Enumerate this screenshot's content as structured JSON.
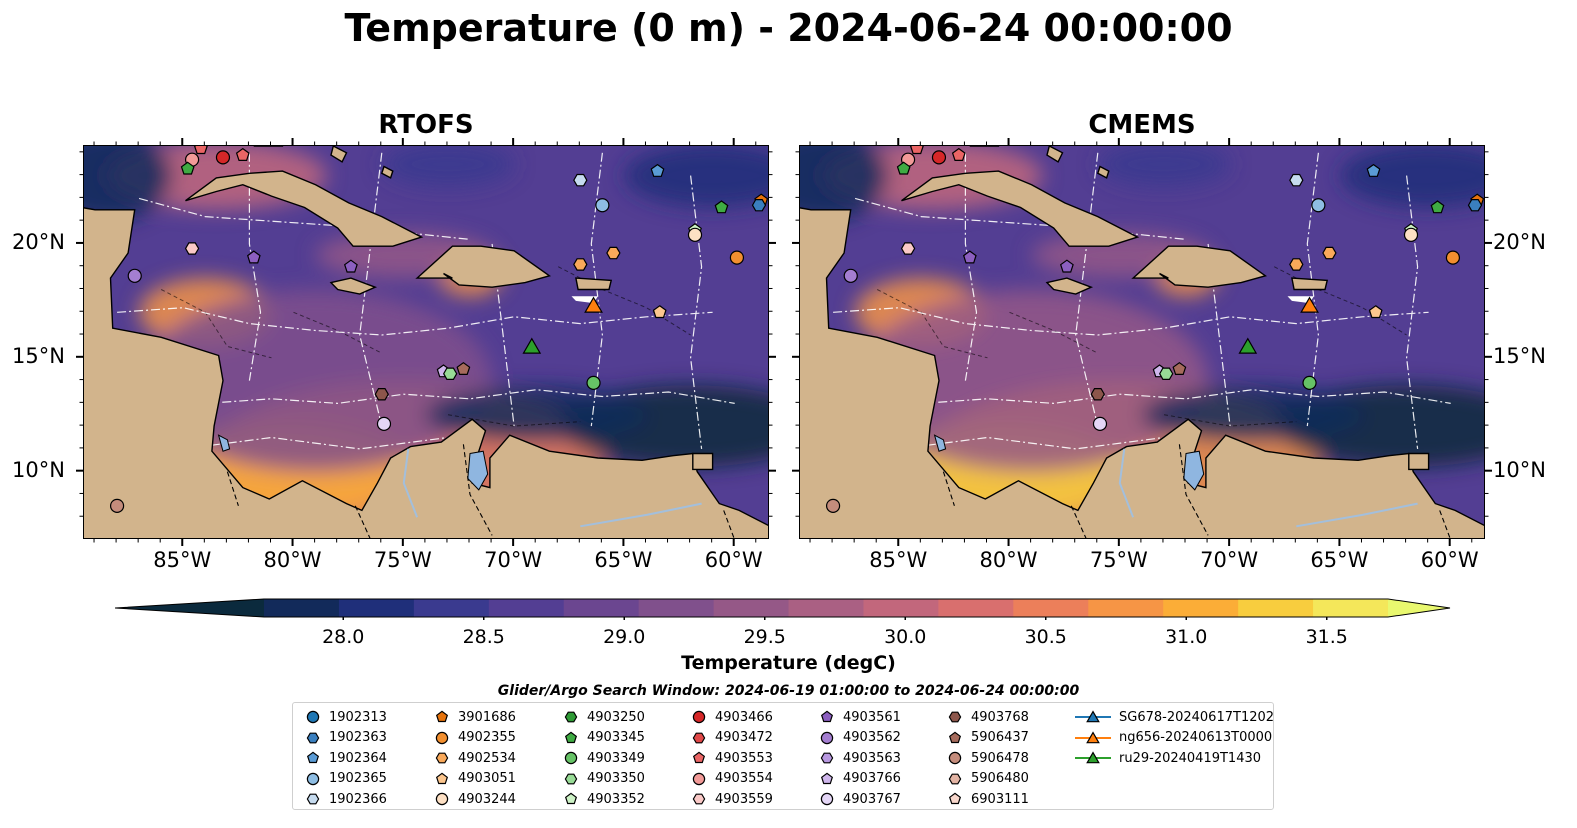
{
  "title": "Temperature (0 m) - 2024-06-24 00:00:00",
  "panels": [
    {
      "title": "RTOFS"
    },
    {
      "title": "CMEMS"
    }
  ],
  "lon_ticks": [
    "85°W",
    "80°W",
    "75°W",
    "70°W",
    "65°W",
    "60°W"
  ],
  "lat_ticks": [
    "20°N",
    "15°N",
    "10°N"
  ],
  "map_extent": {
    "lon": [
      -89.5,
      -58.4
    ],
    "lat": [
      7.0,
      24.3
    ]
  },
  "colorbar": {
    "label": "Temperature (degC)",
    "ticks": [
      "28.0",
      "28.5",
      "29.0",
      "29.5",
      "30.0",
      "30.5",
      "31.0",
      "31.5"
    ],
    "range": [
      27.75,
      31.75
    ],
    "extend": "both",
    "colors": [
      "#0b2a3d",
      "#122a5a",
      "#1f2f7a",
      "#3a3a8f",
      "#533e93",
      "#6b4690",
      "#80508c",
      "#955887",
      "#aa6083",
      "#c2677c",
      "#d96f6e",
      "#ec7f5a",
      "#f69545",
      "#fbad37",
      "#f8cd3e",
      "#f4e75a",
      "#e9f86f"
    ]
  },
  "search_window": "Glider/Argo Search Window: 2024-06-19 01:00:00 to 2024-06-24 00:00:00",
  "legend": [
    {
      "label": "1902313",
      "marker": "circle",
      "color": "#1f77b4"
    },
    {
      "label": "1902363",
      "marker": "hexagon",
      "color": "#3a7fbf"
    },
    {
      "label": "1902364",
      "marker": "pentagon",
      "color": "#5a9bd5"
    },
    {
      "label": "1902365",
      "marker": "circle",
      "color": "#8ebde3"
    },
    {
      "label": "1902366",
      "marker": "hexagon",
      "color": "#c6dbef"
    },
    {
      "label": "3901686",
      "marker": "pentagon",
      "color": "#e6730c"
    },
    {
      "label": "4902355",
      "marker": "circle",
      "color": "#f28f2f"
    },
    {
      "label": "4902534",
      "marker": "hexagon",
      "color": "#f9a95a"
    },
    {
      "label": "4903051",
      "marker": "pentagon",
      "color": "#fcc68e"
    },
    {
      "label": "4903244",
      "marker": "circle",
      "color": "#fde0c4"
    },
    {
      "label": "4903250",
      "marker": "hexagon",
      "color": "#2e9a35"
    },
    {
      "label": "4903345",
      "marker": "pentagon",
      "color": "#3fab43"
    },
    {
      "label": "4903349",
      "marker": "circle",
      "color": "#66c266"
    },
    {
      "label": "4903350",
      "marker": "hexagon",
      "color": "#98db96"
    },
    {
      "label": "4903352",
      "marker": "pentagon",
      "color": "#cdf2c6"
    },
    {
      "label": "4903466",
      "marker": "circle",
      "color": "#d62728"
    },
    {
      "label": "4903472",
      "marker": "hexagon",
      "color": "#e04848"
    },
    {
      "label": "4903553",
      "marker": "pentagon",
      "color": "#ea6565"
    },
    {
      "label": "4903554",
      "marker": "circle",
      "color": "#f29a98"
    },
    {
      "label": "4903559",
      "marker": "hexagon",
      "color": "#fac9c7"
    },
    {
      "label": "4903561",
      "marker": "pentagon",
      "color": "#8c5fc0"
    },
    {
      "label": "4903562",
      "marker": "circle",
      "color": "#a47ed1"
    },
    {
      "label": "4903563",
      "marker": "hexagon",
      "color": "#b898e0"
    },
    {
      "label": "4903766",
      "marker": "pentagon",
      "color": "#cfb6ec"
    },
    {
      "label": "4903767",
      "marker": "circle",
      "color": "#e4d6f6"
    },
    {
      "label": "4903768",
      "marker": "hexagon",
      "color": "#8c564b"
    },
    {
      "label": "5906437",
      "marker": "pentagon",
      "color": "#a66b5c"
    },
    {
      "label": "5906478",
      "marker": "circle",
      "color": "#c48c7c"
    },
    {
      "label": "5906480",
      "marker": "hexagon",
      "color": "#e3b4a4"
    },
    {
      "label": "6903111",
      "marker": "pentagon",
      "color": "#f8d7cc"
    },
    {
      "label": "SG678-20240617T1202",
      "marker": "triangle",
      "color": "#1f77b4",
      "line": true
    },
    {
      "label": "ng656-20240613T0000",
      "marker": "triangle",
      "color": "#ff7f0e",
      "line": true
    },
    {
      "label": "ru29-20240419T1430",
      "marker": "triangle",
      "color": "#2ca02c",
      "line": true
    }
  ],
  "floats": [
    {
      "id": "4903553",
      "lon": -84.2,
      "lat": 24.2
    },
    {
      "id": "4903554",
      "lon": -84.6,
      "lat": 23.7
    },
    {
      "id": "4903345",
      "lon": -84.8,
      "lat": 23.3
    },
    {
      "id": "4903466",
      "lon": -83.2,
      "lat": 23.8
    },
    {
      "id": "4903553",
      "lon": -82.3,
      "lat": 23.9
    },
    {
      "id": "4903559",
      "lon": -84.6,
      "lat": 19.8
    },
    {
      "id": "4903562",
      "lon": -87.2,
      "lat": 18.6
    },
    {
      "id": "4903561",
      "lon": -81.8,
      "lat": 19.4
    },
    {
      "id": "4903561",
      "lon": -77.4,
      "lat": 19.0
    },
    {
      "id": "1902365",
      "lon": -66.0,
      "lat": 21.7
    },
    {
      "id": "1902366",
      "lon": -67.0,
      "lat": 22.8
    },
    {
      "id": "1902364",
      "lon": -63.5,
      "lat": 23.2
    },
    {
      "id": "4903345",
      "lon": -60.6,
      "lat": 21.6
    },
    {
      "id": "3901686",
      "lon": -58.8,
      "lat": 21.9
    },
    {
      "id": "1902363",
      "lon": -58.9,
      "lat": 21.7
    },
    {
      "id": "4903352",
      "lon": -61.8,
      "lat": 20.6
    },
    {
      "id": "4903244",
      "lon": -61.8,
      "lat": 20.4
    },
    {
      "id": "4902534",
      "lon": -65.5,
      "lat": 19.6
    },
    {
      "id": "4902355",
      "lon": -59.9,
      "lat": 19.4
    },
    {
      "id": "4902534",
      "lon": -67.0,
      "lat": 19.1
    },
    {
      "id": "4903051",
      "lon": -63.4,
      "lat": 17.0
    },
    {
      "id": "4903766",
      "lon": -73.2,
      "lat": 14.4
    },
    {
      "id": "4903350",
      "lon": -72.9,
      "lat": 14.3
    },
    {
      "id": "5906437",
      "lon": -72.3,
      "lat": 14.5
    },
    {
      "id": "4903768",
      "lon": -76.0,
      "lat": 13.4
    },
    {
      "id": "4903767",
      "lon": -75.9,
      "lat": 12.1
    },
    {
      "id": "4903349",
      "lon": -66.4,
      "lat": 13.9
    },
    {
      "id": "5906478",
      "lon": -88.0,
      "lat": 8.5
    }
  ],
  "gliders": [
    {
      "id": "ng656-20240613T0000",
      "lon": -66.4,
      "lat": 17.3
    },
    {
      "id": "ru29-20240419T1430",
      "lon": -69.2,
      "lat": 15.5
    }
  ]
}
